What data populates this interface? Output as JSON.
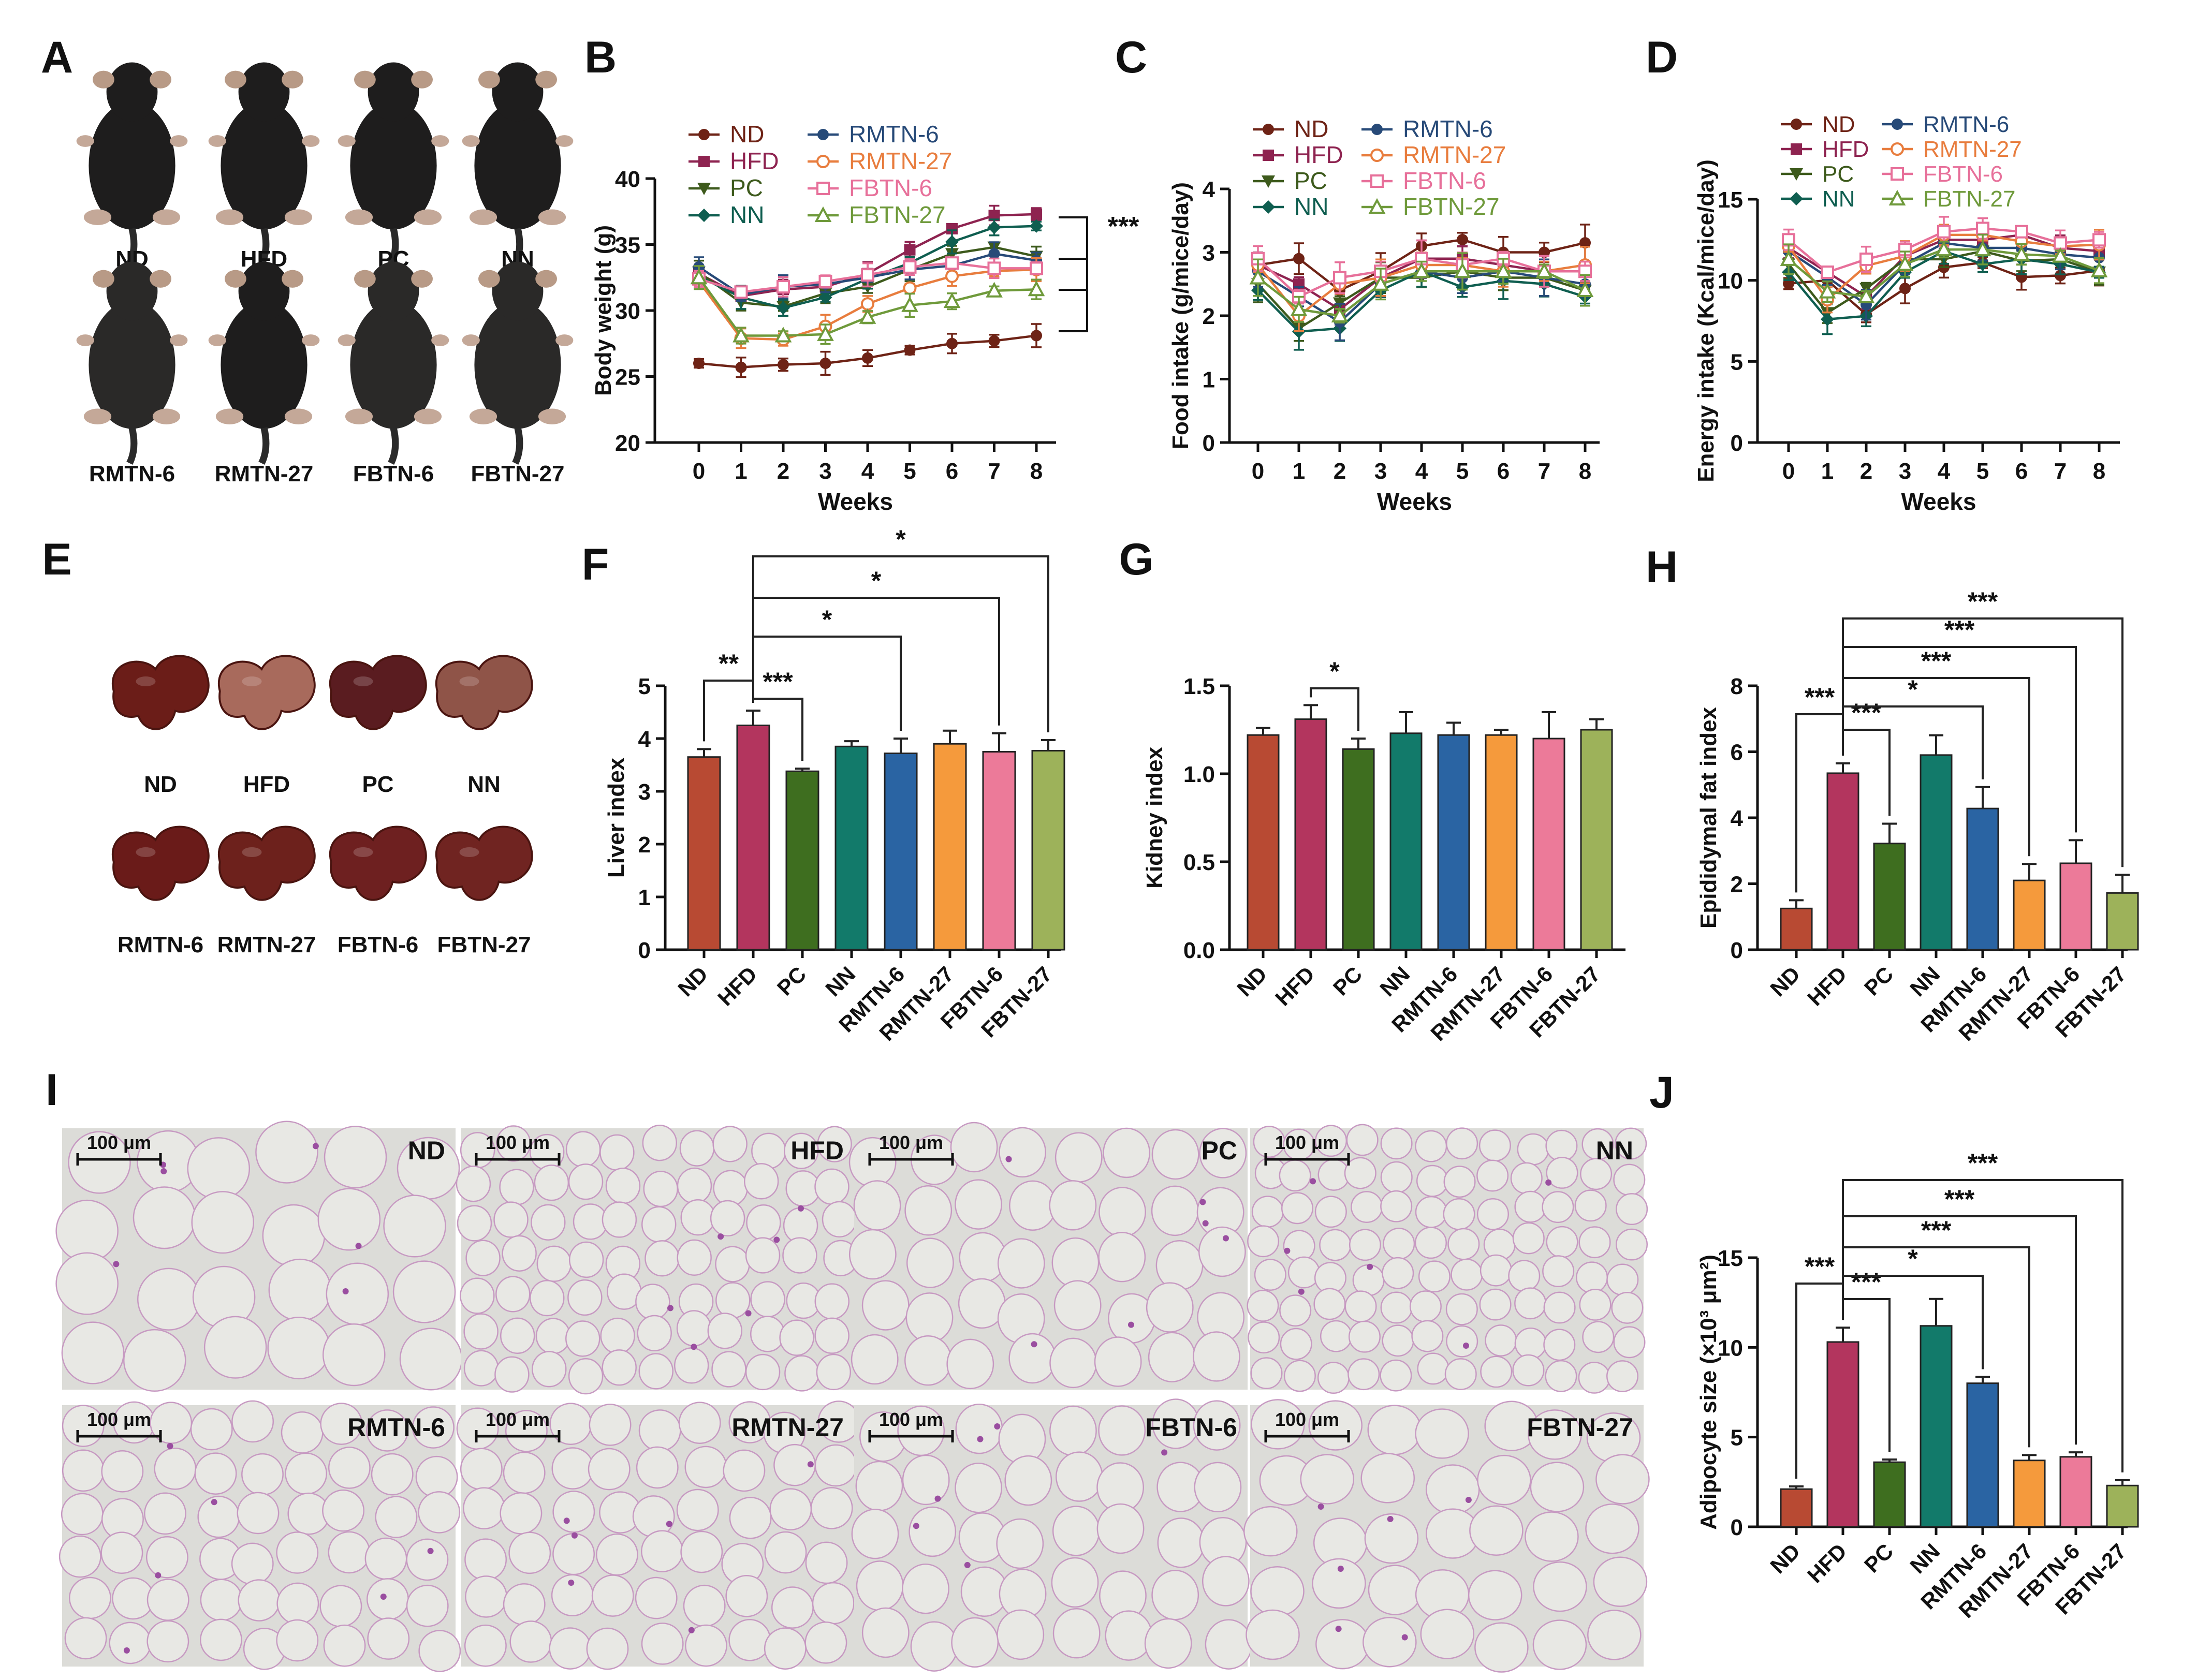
{
  "colors": {
    "ND": "#b84a33",
    "HFD": "#b3355e",
    "PC": "#3e6e1f",
    "NN": "#127a6a",
    "RMTN-6": "#2a64a3",
    "RMTN-27": "#f59a3c",
    "FBTN-6": "#ec7a99",
    "FBTN-27": "#9db25a",
    "line_ND": "#6e2316",
    "line_HFD": "#8e2350",
    "line_PC": "#3d5a1c",
    "line_NN": "#0f5e50",
    "line_RMTN-6": "#274a78",
    "line_RMTN-27": "#e87d3e",
    "line_FBTN-6": "#e7709a",
    "line_FBTN-27": "#6f9a3b"
  },
  "panel_labels": [
    "A",
    "B",
    "C",
    "D",
    "E",
    "F",
    "G",
    "H",
    "I",
    "J"
  ],
  "groups": [
    "ND",
    "HFD",
    "PC",
    "NN",
    "RMTN-6",
    "RMTN-27",
    "FBTN-6",
    "FBTN-27"
  ],
  "mice_photos": {
    "row1": [
      "ND",
      "HFD",
      "PC",
      "NN"
    ],
    "row2": [
      "RMTN-6",
      "RMTN-27",
      "FBTN-6",
      "FBTN-27"
    ]
  },
  "liver_photos": {
    "row1": [
      "ND",
      "HFD",
      "PC",
      "NN"
    ],
    "row2": [
      "RMTN-6",
      "RMTN-27",
      "FBTN-6",
      "FBTN-27"
    ]
  },
  "histology": {
    "scale_bar": "100 μm",
    "labels": [
      "ND",
      "HFD",
      "PC",
      "NN",
      "RMTN-6",
      "RMTN-27",
      "FBTN-6",
      "FBTN-27"
    ]
  },
  "chart_data": [
    {
      "id": "B",
      "type": "line",
      "xlabel": "Weeks",
      "ylabel": "Body weight (g)",
      "ylim": [
        20,
        40
      ],
      "yticks": [
        20,
        25,
        30,
        35,
        40
      ],
      "x": [
        0,
        1,
        2,
        3,
        4,
        5,
        6,
        7,
        8
      ],
      "bracket_label": "***",
      "series": [
        {
          "name": "ND",
          "values": [
            26.0,
            25.7,
            25.9,
            26.0,
            26.4,
            27.0,
            27.5,
            27.7,
            28.1
          ]
        },
        {
          "name": "HFD",
          "values": [
            32.8,
            31.1,
            31.6,
            31.8,
            32.8,
            34.6,
            36.2,
            37.2,
            37.3
          ]
        },
        {
          "name": "PC",
          "values": [
            32.9,
            30.6,
            30.3,
            31.3,
            31.8,
            33.1,
            34.3,
            34.8,
            34.1
          ]
        },
        {
          "name": "NN",
          "values": [
            32.6,
            31.0,
            30.2,
            31.0,
            32.4,
            33.6,
            35.2,
            36.3,
            36.4
          ]
        },
        {
          "name": "RMTN-6",
          "values": [
            33.3,
            31.2,
            31.8,
            32.0,
            32.5,
            33.1,
            33.4,
            34.3,
            33.8
          ]
        },
        {
          "name": "RMTN-27",
          "values": [
            32.2,
            27.9,
            27.8,
            28.8,
            30.5,
            31.7,
            32.6,
            33.0,
            33.1
          ]
        },
        {
          "name": "FBTN-6",
          "values": [
            32.4,
            31.4,
            31.8,
            32.2,
            32.7,
            33.3,
            33.6,
            33.2,
            33.2
          ]
        },
        {
          "name": "FBTN-27",
          "values": [
            32.5,
            28.1,
            28.1,
            28.2,
            29.5,
            30.4,
            30.7,
            31.5,
            31.6
          ]
        }
      ]
    },
    {
      "id": "C",
      "type": "line",
      "xlabel": "Weeks",
      "ylabel": "Food intake (g/mice/day)",
      "ylim": [
        0,
        4
      ],
      "yticks": [
        0,
        1,
        2,
        3,
        4
      ],
      "x": [
        0,
        1,
        2,
        3,
        4,
        5,
        6,
        7,
        8
      ],
      "series": [
        {
          "name": "ND",
          "values": [
            2.8,
            2.9,
            2.4,
            2.7,
            3.1,
            3.2,
            3.0,
            3.0,
            3.15
          ]
        },
        {
          "name": "HFD",
          "values": [
            2.8,
            2.5,
            2.1,
            2.6,
            2.9,
            2.9,
            2.8,
            2.7,
            2.7
          ]
        },
        {
          "name": "PC",
          "values": [
            2.5,
            1.8,
            2.2,
            2.6,
            2.6,
            2.7,
            2.6,
            2.6,
            2.4
          ]
        },
        {
          "name": "NN",
          "values": [
            2.4,
            1.75,
            1.8,
            2.4,
            2.7,
            2.45,
            2.55,
            2.5,
            2.3
          ]
        },
        {
          "name": "RMTN-6",
          "values": [
            2.7,
            2.3,
            1.9,
            2.5,
            2.7,
            2.6,
            2.7,
            2.6,
            2.5
          ]
        },
        {
          "name": "RMTN-27",
          "values": [
            2.8,
            2.0,
            2.5,
            2.6,
            2.8,
            2.8,
            2.7,
            2.7,
            2.8
          ]
        },
        {
          "name": "FBTN-6",
          "values": [
            2.9,
            2.3,
            2.6,
            2.7,
            2.9,
            2.8,
            2.9,
            2.7,
            2.7
          ]
        },
        {
          "name": "FBTN-27",
          "values": [
            2.6,
            2.1,
            2.0,
            2.5,
            2.7,
            2.7,
            2.7,
            2.7,
            2.4
          ]
        }
      ]
    },
    {
      "id": "D",
      "type": "line",
      "xlabel": "Weeks",
      "ylabel": "Energy intake (Kcal/mice/day)",
      "ylim": [
        0,
        15
      ],
      "yticks": [
        0,
        5,
        10,
        15
      ],
      "x": [
        0,
        1,
        2,
        3,
        4,
        5,
        6,
        7,
        8
      ],
      "series": [
        {
          "name": "ND",
          "values": [
            9.8,
            10.0,
            7.9,
            9.5,
            10.8,
            11.1,
            10.2,
            10.3,
            10.6
          ]
        },
        {
          "name": "HFD",
          "values": [
            12.0,
            10.5,
            9.0,
            11.5,
            12.5,
            12.5,
            12.8,
            12.0,
            11.8
          ]
        },
        {
          "name": "PC",
          "values": [
            11.0,
            8.0,
            9.5,
            11.3,
            11.3,
            11.8,
            11.2,
            11.3,
            10.5
          ]
        },
        {
          "name": "NN",
          "values": [
            10.5,
            7.6,
            7.8,
            10.5,
            11.8,
            11.0,
            11.3,
            11.0,
            10.5
          ]
        },
        {
          "name": "RMTN-6",
          "values": [
            11.8,
            10.2,
            8.5,
            11.0,
            12.3,
            12.0,
            12.0,
            11.6,
            11.4
          ]
        },
        {
          "name": "RMTN-27",
          "values": [
            12.1,
            8.8,
            10.9,
            11.5,
            12.8,
            12.8,
            12.4,
            12.1,
            12.2
          ]
        },
        {
          "name": "FBTN-6",
          "values": [
            12.5,
            10.5,
            11.3,
            11.9,
            13.0,
            13.2,
            13.0,
            12.3,
            12.5
          ]
        },
        {
          "name": "FBTN-27",
          "values": [
            11.3,
            9.3,
            9.0,
            11.0,
            11.9,
            11.9,
            11.6,
            11.5,
            10.6
          ]
        }
      ]
    },
    {
      "id": "F",
      "type": "bar",
      "ylabel": "Liver index",
      "ylim": [
        0,
        5
      ],
      "yticks": [
        0,
        1,
        2,
        3,
        4,
        5
      ],
      "categories": [
        "ND",
        "HFD",
        "PC",
        "NN",
        "RMTN-6",
        "RMTN-27",
        "FBTN-6",
        "FBTN-27"
      ],
      "values": [
        3.65,
        4.25,
        3.38,
        3.85,
        3.72,
        3.9,
        3.75,
        3.77
      ],
      "errors": [
        0.15,
        0.28,
        0.05,
        0.1,
        0.28,
        0.25,
        0.35,
        0.2
      ],
      "brackets": [
        {
          "from": 0,
          "to": 1,
          "label": "**"
        },
        {
          "from": 1,
          "to": 2,
          "label": "***"
        },
        {
          "from": 1,
          "to": 4,
          "label": "*"
        },
        {
          "from": 1,
          "to": 6,
          "label": "*"
        },
        {
          "from": 1,
          "to": 7,
          "label": "*"
        }
      ]
    },
    {
      "id": "G",
      "type": "bar",
      "ylabel": "Kidney index",
      "ylim": [
        0,
        1.5
      ],
      "yticks": [
        "0.0",
        "0.5",
        "1.0",
        "1.5"
      ],
      "categories": [
        "ND",
        "HFD",
        "PC",
        "NN",
        "RMTN-6",
        "RMTN-27",
        "FBTN-6",
        "FBTN-27"
      ],
      "values": [
        1.22,
        1.31,
        1.14,
        1.23,
        1.22,
        1.22,
        1.2,
        1.25
      ],
      "errors": [
        0.04,
        0.08,
        0.06,
        0.12,
        0.07,
        0.03,
        0.15,
        0.06
      ],
      "brackets": [
        {
          "from": 1,
          "to": 2,
          "label": "*"
        }
      ]
    },
    {
      "id": "H",
      "type": "bar",
      "ylabel": "Epididymal fat index",
      "ylim": [
        0,
        8
      ],
      "yticks": [
        0,
        2,
        4,
        6,
        8
      ],
      "categories": [
        "ND",
        "HFD",
        "PC",
        "NN",
        "RMTN-6",
        "RMTN-27",
        "FBTN-6",
        "FBTN-27"
      ],
      "values": [
        1.25,
        5.35,
        3.22,
        5.9,
        4.28,
        2.1,
        2.62,
        1.72
      ],
      "errors": [
        0.25,
        0.3,
        0.6,
        0.6,
        0.65,
        0.5,
        0.7,
        0.55
      ],
      "brackets": [
        {
          "from": 0,
          "to": 1,
          "label": "***"
        },
        {
          "from": 1,
          "to": 2,
          "label": "***"
        },
        {
          "from": 1,
          "to": 4,
          "label": "*"
        },
        {
          "from": 1,
          "to": 5,
          "label": "***"
        },
        {
          "from": 1,
          "to": 6,
          "label": "***"
        },
        {
          "from": 1,
          "to": 7,
          "label": "***"
        }
      ]
    },
    {
      "id": "J",
      "type": "bar",
      "ylabel": "Adipocyte size (×10³ μm²)",
      "ylim": [
        0,
        15
      ],
      "yticks": [
        0,
        5,
        10,
        15
      ],
      "categories": [
        "ND",
        "HFD",
        "PC",
        "NN",
        "RMTN-6",
        "RMTN-27",
        "FBTN-6",
        "FBTN-27"
      ],
      "values": [
        2.1,
        10.3,
        3.6,
        11.2,
        8.0,
        3.7,
        3.9,
        2.3
      ],
      "errors": [
        0.15,
        0.8,
        0.15,
        1.5,
        0.35,
        0.3,
        0.25,
        0.3
      ],
      "brackets": [
        {
          "from": 0,
          "to": 1,
          "label": "***"
        },
        {
          "from": 1,
          "to": 2,
          "label": "***"
        },
        {
          "from": 1,
          "to": 4,
          "label": "*"
        },
        {
          "from": 1,
          "to": 5,
          "label": "***"
        },
        {
          "from": 1,
          "to": 6,
          "label": "***"
        },
        {
          "from": 1,
          "to": 7,
          "label": "***"
        }
      ]
    }
  ]
}
